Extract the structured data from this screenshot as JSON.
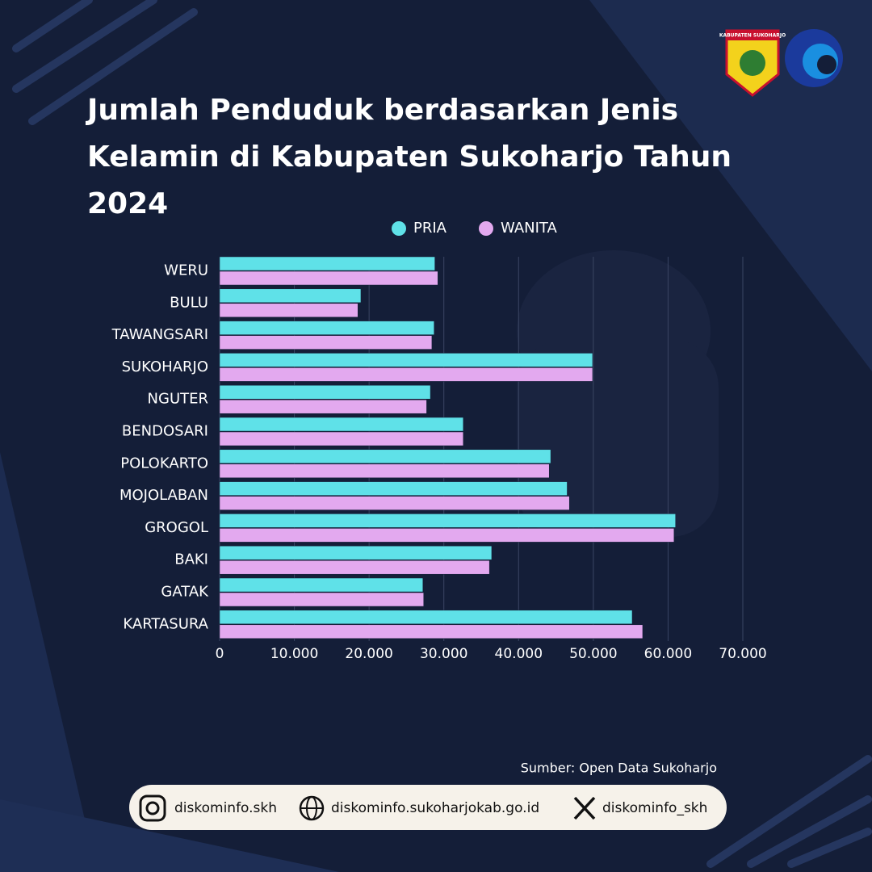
{
  "logo_text": "KABUPATEN SUKOHARJO",
  "chart_data": {
    "type": "barh",
    "title": "Jumlah Penduduk berdasarkan Jenis Kelamin di Kabupaten Sukoharjo Tahun 2024",
    "categories": [
      "WERU",
      "BULU",
      "TAWANGSARI",
      "SUKOHARJO",
      "NGUTER",
      "BENDOSARI",
      "POLOKARTO",
      "MOJOLABAN",
      "GROGOL",
      "BAKI",
      "GATAK",
      "KARTASURA"
    ],
    "series": [
      {
        "name": "PRIA",
        "color": "#5fe1e8",
        "values": [
          28800,
          18900,
          28700,
          49900,
          28200,
          32600,
          44300,
          46500,
          61000,
          36400,
          27200,
          55200
        ]
      },
      {
        "name": "WANITA",
        "color": "#e3a9ef",
        "values": [
          29200,
          18500,
          28400,
          49900,
          27700,
          32600,
          44100,
          46800,
          60800,
          36100,
          27300,
          56600
        ]
      }
    ],
    "xlim": [
      0,
      70000
    ],
    "xticks": [
      0,
      {
        "value": 10000,
        "label": "10.000"
      },
      {
        "value": 20000,
        "label": "20.000"
      },
      {
        "value": 30000,
        "label": "30.000"
      },
      {
        "value": 40000,
        "label": "40.000"
      },
      {
        "value": 50000,
        "label": "50.000"
      },
      {
        "value": 60000,
        "label": "60.000"
      },
      {
        "value": 70000,
        "label": "70.000"
      }
    ],
    "grid": true,
    "legend": "top",
    "source": "Sumber: Open Data Sukoharjo"
  },
  "footer": {
    "instagram": "diskominfo.skh",
    "website": "diskominfo.sukoharjokab.go.id",
    "x": "diskominfo_skh"
  }
}
